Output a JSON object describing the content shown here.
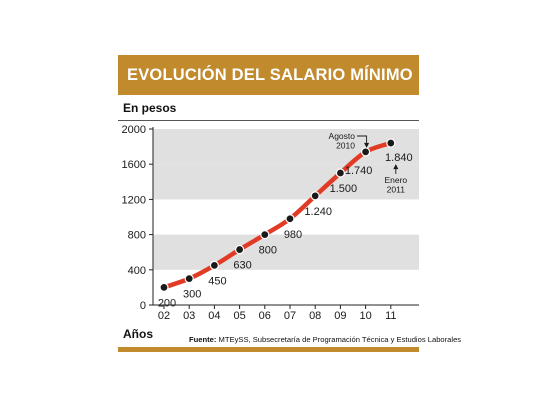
{
  "title": "EVOLUCIÓN DEL SALARIO MÍNIMO",
  "source_label": "Fuente:",
  "source_text": "MTEySS, Subsecretaría de Programación Técnica y Estudios Laborales",
  "colors": {
    "accent": "#c18a2d",
    "band": "#e0e0e0",
    "line": "#e23b25",
    "marker": "#1a1a1a"
  },
  "chart_data": {
    "type": "line",
    "title": "EVOLUCIÓN DEL SALARIO MÍNIMO",
    "ylabel": "En pesos",
    "xlabel": "Años",
    "categories": [
      "02",
      "03",
      "04",
      "05",
      "06",
      "07",
      "08",
      "09",
      "10",
      "11"
    ],
    "series": [
      {
        "values": [
          200,
          300,
          450,
          630,
          800,
          980,
          1240,
          1500,
          1740,
          1840
        ],
        "labels": [
          "200",
          "300",
          "450",
          "630",
          "800",
          "980",
          "1.240",
          "1.500",
          "1.740",
          "1.840"
        ]
      }
    ],
    "yticks": [
      0,
      400,
      800,
      1200,
      1600,
      2000
    ],
    "ylim": [
      0,
      2000
    ],
    "grid": "alternating horizontal bands",
    "annotations": [
      {
        "text": "Agosto\n2010",
        "category": "10"
      },
      {
        "text": "Enero\n2011",
        "category": "11"
      }
    ]
  }
}
